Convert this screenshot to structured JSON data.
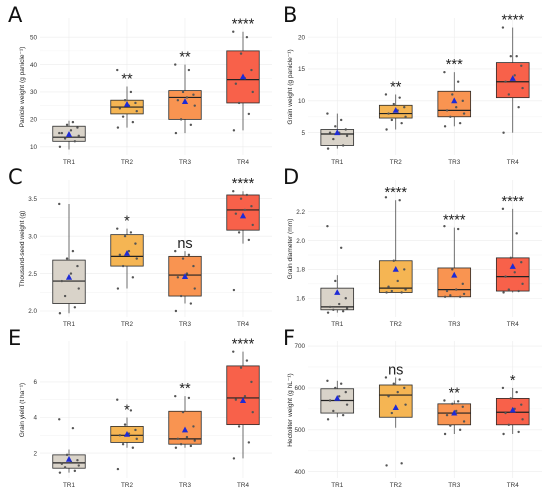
{
  "figure": {
    "box_colors": [
      "#d9d3c9",
      "#f5b553",
      "#f99451",
      "#f8614a"
    ],
    "mean_marker_color": "#1e2bd6",
    "point_color": "#555555"
  },
  "chart_data": [
    {
      "panel": "A",
      "type": "box",
      "title": "",
      "ylabel": "Panicle weight (g panicle⁻¹)",
      "categories": [
        "TR1",
        "TR2",
        "TR3",
        "TR4"
      ],
      "ylim": [
        7,
        57
      ],
      "yticks": [
        10,
        20,
        30,
        40,
        50
      ],
      "grid": true,
      "boxes": [
        {
          "whisker_low": 9,
          "q1": 12,
          "median": 13.5,
          "q3": 17.5,
          "whisker_high": 19.5,
          "mean": 14.5
        },
        {
          "whisker_low": 17,
          "q1": 22,
          "median": 24.5,
          "q3": 27,
          "whisker_high": 32,
          "mean": 25.5
        },
        {
          "whisker_low": 15,
          "q1": 20,
          "median": 28,
          "q3": 30.5,
          "whisker_high": 40,
          "mean": 26.5
        },
        {
          "whisker_low": 16,
          "q1": 26,
          "median": 34.5,
          "q3": 45,
          "whisker_high": 52,
          "mean": 35.5
        }
      ],
      "points": [
        [
          10,
          12,
          13,
          14,
          15,
          16,
          17,
          18,
          19,
          15
        ],
        [
          17,
          19,
          21,
          23,
          24,
          25,
          26,
          27,
          30,
          38
        ],
        [
          15,
          18,
          20,
          25,
          27,
          28,
          29,
          30,
          38,
          40
        ],
        [
          16,
          22,
          26,
          30,
          33,
          35,
          38,
          44,
          50,
          52
        ]
      ],
      "significance": [
        "",
        "**",
        "**",
        "****"
      ]
    },
    {
      "panel": "B",
      "type": "box",
      "title": "",
      "ylabel": "Grain weight (g panicle⁻¹)",
      "categories": [
        "TR1",
        "TR2",
        "TR3",
        "TR4"
      ],
      "ylim": [
        1.5,
        23
      ],
      "yticks": [
        5,
        10,
        15,
        20
      ],
      "grid": true,
      "boxes": [
        {
          "whisker_low": 2.5,
          "q1": 3,
          "median": 4.8,
          "q3": 5.5,
          "whisker_high": 8,
          "mean": 5
        },
        {
          "whisker_low": 5.5,
          "q1": 7.3,
          "median": 8,
          "q3": 9.3,
          "whisker_high": 11,
          "mean": 8.5
        },
        {
          "whisker_low": 6,
          "q1": 7.5,
          "median": 8.5,
          "q3": 11.5,
          "whisker_high": 14.5,
          "mean": 10
        },
        {
          "whisker_low": 5,
          "q1": 10.5,
          "median": 13,
          "q3": 16,
          "whisker_high": 21.5,
          "mean": 13.5
        }
      ],
      "points": [
        [
          2.5,
          3,
          4,
          4.5,
          5,
          5,
          5.5,
          6,
          7,
          8
        ],
        [
          5.5,
          6.5,
          7,
          7.5,
          8,
          8.5,
          9,
          9.5,
          10.5,
          11
        ],
        [
          6,
          6.5,
          7.5,
          8,
          8.5,
          9,
          10,
          11,
          13,
          14.5
        ],
        [
          5,
          9,
          11,
          12,
          13,
          14,
          15.5,
          17,
          17,
          21.5
        ]
      ],
      "significance": [
        "",
        "**",
        "***",
        "****"
      ]
    },
    {
      "panel": "C",
      "type": "box",
      "title": "",
      "ylabel": "Thousand-seed weight (g)",
      "categories": [
        "TR1",
        "TR2",
        "TR3",
        "TR4"
      ],
      "ylim": [
        1.92,
        3.75
      ],
      "yticks": [
        2.0,
        2.5,
        3.0,
        3.5
      ],
      "ytick_labels": [
        "2.0",
        "2.5",
        "3.0",
        "3.5"
      ],
      "grid": true,
      "boxes": [
        {
          "whisker_low": 1.97,
          "q1": 2.1,
          "median": 2.4,
          "q3": 2.68,
          "whisker_high": 3.43,
          "mean": 2.45
        },
        {
          "whisker_low": 2.3,
          "q1": 2.6,
          "median": 2.73,
          "q3": 3.02,
          "whisker_high": 3.1,
          "mean": 2.77
        },
        {
          "whisker_low": 2.1,
          "q1": 2.2,
          "median": 2.48,
          "q3": 2.73,
          "whisker_high": 2.8,
          "mean": 2.46
        },
        {
          "whisker_low": 2.9,
          "q1": 3.08,
          "median": 3.35,
          "q3": 3.55,
          "whisker_high": 3.6,
          "mean": 3.27
        }
      ],
      "points": [
        [
          1.97,
          2.05,
          2.2,
          2.3,
          2.4,
          2.5,
          2.6,
          2.7,
          2.8,
          3.43
        ],
        [
          2.3,
          2.45,
          2.6,
          2.7,
          2.75,
          2.8,
          2.9,
          3.0,
          3.05,
          3.1
        ],
        [
          2.0,
          2.1,
          2.2,
          2.3,
          2.45,
          2.5,
          2.6,
          2.7,
          2.75,
          2.8
        ],
        [
          2.28,
          2.95,
          3.05,
          3.15,
          3.3,
          3.35,
          3.4,
          3.5,
          3.55,
          3.6
        ]
      ],
      "significance": [
        "",
        "*",
        "ns",
        "****"
      ]
    },
    {
      "panel": "D",
      "type": "box",
      "title": "",
      "ylabel": "Grain diameter (mm)",
      "categories": [
        "TR1",
        "TR2",
        "TR3",
        "TR4"
      ],
      "ylim": [
        1.47,
        2.42
      ],
      "yticks": [
        1.6,
        1.8,
        2.0,
        2.2
      ],
      "ytick_labels": [
        "1.6",
        "1.8",
        "2.0",
        "2.2"
      ],
      "grid": true,
      "boxes": [
        {
          "whisker_low": 1.5,
          "q1": 1.52,
          "median": 1.54,
          "q3": 1.67,
          "whisker_high": 1.76,
          "mean": 1.64
        },
        {
          "whisker_low": 1.64,
          "q1": 1.64,
          "median": 1.67,
          "q3": 1.86,
          "whisker_high": 2.28,
          "mean": 1.8
        },
        {
          "whisker_low": 1.61,
          "q1": 1.61,
          "median": 1.66,
          "q3": 1.81,
          "whisker_high": 2.09,
          "mean": 1.76
        },
        {
          "whisker_low": 1.64,
          "q1": 1.65,
          "median": 1.75,
          "q3": 1.88,
          "whisker_high": 2.22,
          "mean": 1.82
        }
      ],
      "points": [
        [
          1.5,
          1.51,
          1.52,
          1.53,
          1.54,
          1.56,
          1.6,
          1.72,
          1.95,
          2.1
        ],
        [
          1.64,
          1.64,
          1.65,
          1.66,
          1.68,
          1.72,
          1.8,
          1.86,
          2.28,
          2.3
        ],
        [
          1.61,
          1.61,
          1.62,
          1.63,
          1.65,
          1.66,
          1.7,
          1.8,
          2.08,
          2.1
        ],
        [
          1.64,
          1.65,
          1.66,
          1.7,
          1.75,
          1.78,
          1.85,
          1.88,
          2.05,
          2.22
        ]
      ],
      "significance": [
        "",
        "****",
        "****",
        "****"
      ]
    },
    {
      "panel": "E",
      "type": "box",
      "title": "",
      "ylabel": "Grain yield (t ha⁻¹)",
      "categories": [
        "TR1",
        "TR2",
        "TR3",
        "TR4"
      ],
      "ylim": [
        0.6,
        8.3
      ],
      "yticks": [
        2,
        4,
        6
      ],
      "grid": true,
      "boxes": [
        {
          "whisker_low": 0.9,
          "q1": 1.15,
          "median": 1.45,
          "q3": 1.9,
          "whisker_high": 2.2,
          "mean": 1.65
        },
        {
          "whisker_low": 2.3,
          "q1": 2.6,
          "median": 3.0,
          "q3": 3.5,
          "whisker_high": 4.0,
          "mean": 3.05
        },
        {
          "whisker_low": 2.3,
          "q1": 2.5,
          "median": 2.8,
          "q3": 4.35,
          "whisker_high": 5.2,
          "mean": 3.3
        },
        {
          "whisker_low": 1.7,
          "q1": 3.6,
          "median": 5.1,
          "q3": 6.9,
          "whisker_high": 7.7,
          "mean": 4.95
        }
      ],
      "points": [
        [
          0.9,
          1.0,
          1.2,
          1.3,
          1.4,
          1.5,
          1.6,
          1.9,
          3.4,
          3.9
        ],
        [
          1.1,
          2.3,
          2.5,
          2.8,
          3.0,
          3.1,
          3.3,
          3.6,
          4.4,
          5.0
        ],
        [
          2.3,
          2.4,
          2.5,
          2.7,
          2.8,
          2.9,
          3.5,
          4.3,
          5.1,
          5.2
        ],
        [
          1.7,
          2.6,
          3.5,
          4.3,
          5.0,
          5.2,
          6.0,
          6.8,
          7.2,
          7.7
        ]
      ],
      "significance": [
        "",
        "*",
        "**",
        "****"
      ]
    },
    {
      "panel": "F",
      "type": "box",
      "title": "",
      "ylabel": "Hectoliter weight (g hL⁻¹)",
      "categories": [
        "TR1",
        "TR2",
        "TR3",
        "TR4"
      ],
      "ylim": [
        385,
        712
      ],
      "yticks": [
        400,
        500,
        600,
        700
      ],
      "grid": true,
      "boxes": [
        {
          "whisker_low": 530,
          "q1": 540,
          "median": 570,
          "q3": 598,
          "whisker_high": 617,
          "mean": 575
        },
        {
          "whisker_low": 505,
          "q1": 530,
          "median": 583,
          "q3": 607,
          "whisker_high": 625,
          "mean": 553
        },
        {
          "whisker_low": 490,
          "q1": 512,
          "median": 540,
          "q3": 562,
          "whisker_high": 570,
          "mean": 540
        },
        {
          "whisker_low": 490,
          "q1": 512,
          "median": 542,
          "q3": 575,
          "whisker_high": 600,
          "mean": 547
        }
      ],
      "points": [
        [
          525,
          535,
          545,
          560,
          570,
          580,
          590,
          600,
          610,
          617
        ],
        [
          415,
          420,
          540,
          560,
          580,
          590,
          600,
          610,
          620,
          625
        ],
        [
          490,
          500,
          510,
          520,
          535,
          545,
          555,
          562,
          568,
          570
        ],
        [
          490,
          495,
          512,
          525,
          540,
          550,
          560,
          575,
          590,
          600
        ]
      ],
      "significance": [
        "",
        "ns",
        "**",
        "*"
      ]
    }
  ]
}
